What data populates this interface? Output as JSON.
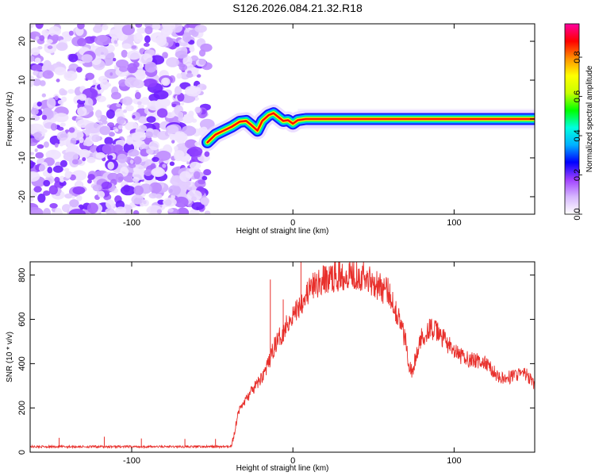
{
  "page": {
    "title": "S126.2026.084.21.32.R18"
  },
  "chart_data": [
    {
      "type": "heatmap",
      "title": "S126.2026.084.21.32.R18",
      "xlabel": "Height of straight line (km)",
      "ylabel": "Frequency (Hz)",
      "xlim": [
        -163,
        150
      ],
      "ylim": [
        -24.5,
        24.5
      ],
      "xticks": [
        -100,
        0,
        100
      ],
      "yticks": [
        -20,
        -10,
        0,
        10,
        20
      ],
      "noise_region_x": [
        -163,
        -53
      ],
      "ridge": {
        "x": [
          -53,
          -48,
          -43,
          -38,
          -33,
          -29,
          -26,
          -22,
          -19,
          -15,
          -12,
          -9,
          -6,
          -3,
          0,
          3,
          8,
          15,
          30,
          60,
          100,
          150
        ],
        "y": [
          -6,
          -4,
          -3,
          -2,
          -0.7,
          -0.5,
          -1.5,
          -3,
          -0.5,
          1,
          1.5,
          0.5,
          -0.5,
          -0.3,
          -1.2,
          -0.3,
          0,
          0,
          0,
          0,
          0,
          0
        ]
      },
      "colorbar": {
        "label": "Normalized spectral amplitude",
        "ticks": [
          0.0,
          0.2,
          0.4,
          0.6,
          0.8
        ],
        "tick_labels": [
          "0.0",
          "0.2",
          "0.4",
          "0.6",
          "0.8"
        ],
        "range": [
          0,
          0.97
        ],
        "colors": [
          "#ffffff",
          "#d7b8ff",
          "#a040ff",
          "#0000ff",
          "#00b0ff",
          "#00ffe0",
          "#00ff00",
          "#c8ff00",
          "#ffff00",
          "#ff9000",
          "#ff0000",
          "#ff00a0"
        ]
      }
    },
    {
      "type": "line",
      "xlabel": "Height of straight line (km)",
      "ylabel": "SNR (10 * v/v)",
      "xlim": [
        -163,
        150
      ],
      "ylim": [
        0,
        860
      ],
      "xticks": [
        -100,
        0,
        100
      ],
      "yticks": [
        0,
        200,
        400,
        600,
        800
      ],
      "color": "#e8302c",
      "series": [
        {
          "name": "SNR",
          "x": [
            -163,
            -140,
            -120,
            -100,
            -80,
            -60,
            -45,
            -40,
            -38,
            -36,
            -34,
            -30,
            -25,
            -20,
            -15,
            -12,
            -10,
            -8,
            -5,
            -3,
            0,
            3,
            5,
            10,
            15,
            20,
            25,
            30,
            35,
            40,
            45,
            50,
            55,
            60,
            63,
            66,
            70,
            72,
            74,
            76,
            80,
            85,
            90,
            95,
            100,
            105,
            110,
            115,
            120,
            125,
            130,
            135,
            140,
            145,
            150
          ],
          "y": [
            25,
            25,
            25,
            25,
            25,
            25,
            25,
            25,
            30,
            100,
            180,
            230,
            280,
            330,
            400,
            470,
            500,
            520,
            560,
            590,
            620,
            650,
            680,
            730,
            760,
            780,
            790,
            800,
            810,
            805,
            790,
            770,
            740,
            720,
            660,
            600,
            500,
            400,
            360,
            420,
            520,
            560,
            540,
            500,
            450,
            430,
            420,
            410,
            400,
            360,
            330,
            340,
            355,
            350,
            300
          ],
          "spikes": [
            {
              "x": -145,
              "y": 65
            },
            {
              "x": -117,
              "y": 70
            },
            {
              "x": -94,
              "y": 62
            },
            {
              "x": -67,
              "y": 60
            },
            {
              "x": -48,
              "y": 60
            },
            {
              "x": -14,
              "y": 780
            },
            {
              "x": -6,
              "y": 690
            },
            {
              "x": -4,
              "y": 610
            },
            {
              "x": 5,
              "y": 860
            },
            {
              "x": 30,
              "y": 830
            },
            {
              "x": 54,
              "y": 800
            }
          ]
        }
      ]
    }
  ]
}
